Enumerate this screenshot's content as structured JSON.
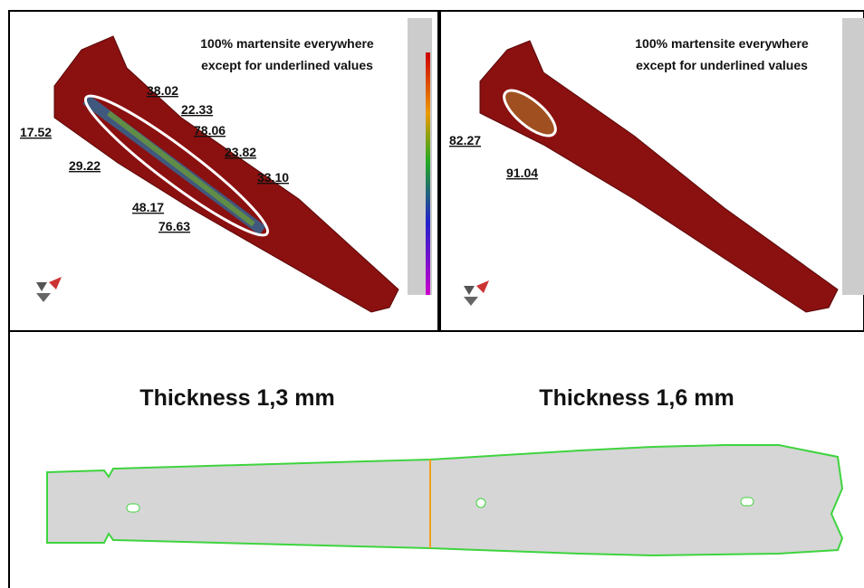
{
  "panels": [
    {
      "note": [
        "100% martensite everywhere",
        "except for underlined values"
      ],
      "values": [
        "38.02",
        "22.33",
        "78.06",
        "17.52",
        "23.82",
        "29.22",
        "33.10",
        "48.17",
        "76.63"
      ]
    },
    {
      "note": [
        "100% martensite everywhere",
        "except for underlined values"
      ],
      "values": [
        "82.27",
        "91.04"
      ]
    }
  ],
  "bottom": {
    "labels": [
      "Thickness 1,3 mm",
      "Thickness 1,6 mm"
    ]
  }
}
